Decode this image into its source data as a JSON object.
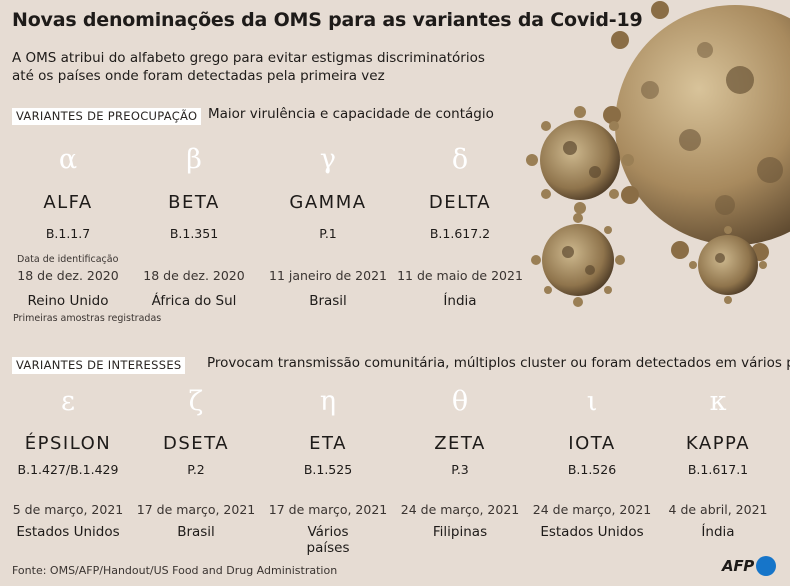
{
  "title": "Novas denominações da OMS para as variantes da Covid-19",
  "subtitle_line1": "A OMS atribui do alfabeto grego para evitar estigmas discriminatórios",
  "subtitle_line2": "até os países onde foram detectadas pela primeira vez",
  "concern": {
    "badge": "VARIANTES DE PREOCUPAÇÃO",
    "description": "Maior virulência e capacidade de contágio",
    "date_heading": "Data de identificação",
    "sample_note": "Primeiras amostras registradas",
    "variants": [
      {
        "greek": "α",
        "name": "ALFA",
        "code": "B.1.1.7",
        "date": "18 de dez. 2020",
        "country": "Reino Unido"
      },
      {
        "greek": "β",
        "name": "BETA",
        "code": "B.1.351",
        "date": "18 de dez. 2020",
        "country": "África do Sul"
      },
      {
        "greek": "γ",
        "name": "GAMMA",
        "code": "P.1",
        "date": "11 janeiro de 2021",
        "country": "Brasil"
      },
      {
        "greek": "δ",
        "name": "DELTA",
        "code": "B.1.617.2",
        "date": "11 de maio de 2021",
        "country": "Índia"
      }
    ]
  },
  "interest": {
    "badge": "VARIANTES DE INTERESSES",
    "description": "Provocam transmissão comunitária, múltiplos cluster ou foram detectados em vários países",
    "variants": [
      {
        "greek": "ε",
        "name": "ÉPSILON",
        "code": "B.1.427/B.1.429",
        "date": "5 de março, 2021",
        "country": "Estados Unidos",
        "country2": ""
      },
      {
        "greek": "ζ",
        "name": "DSETA",
        "code": "P.2",
        "date": "17 de março, 2021",
        "country": "Brasil",
        "country2": ""
      },
      {
        "greek": "η",
        "name": "ETA",
        "code": "B.1.525",
        "date": "17 de março, 2021",
        "country": "Vários",
        "country2": "países"
      },
      {
        "greek": "θ",
        "name": "ZETA",
        "code": "P.3",
        "date": "24 de março, 2021",
        "country": "Filipinas",
        "country2": ""
      },
      {
        "greek": "ι",
        "name": "IOTA",
        "code": "B.1.526",
        "date": "24 de março, 2021",
        "country": "Estados Unidos",
        "country2": ""
      },
      {
        "greek": "κ",
        "name": "KAPPA",
        "code": "B.1.617.1",
        "date": "4 de abril, 2021",
        "country": "Índia",
        "country2": ""
      }
    ]
  },
  "source": "Fonte: OMS/AFP/Handout/US Food and Drug Administration",
  "logo_text": "AFP",
  "colors": {
    "background": "#e6dcd3",
    "virus": "#b79a6c",
    "logo_dot": "#1675c9"
  }
}
